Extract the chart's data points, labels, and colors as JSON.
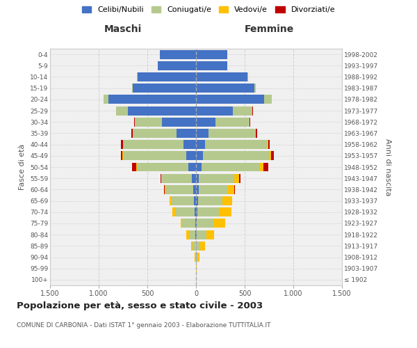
{
  "age_groups": [
    "100+",
    "95-99",
    "90-94",
    "85-89",
    "80-84",
    "75-79",
    "70-74",
    "65-69",
    "60-64",
    "55-59",
    "50-54",
    "45-49",
    "40-44",
    "35-39",
    "30-34",
    "25-29",
    "20-24",
    "15-19",
    "10-14",
    "5-9",
    "0-4"
  ],
  "birth_years": [
    "≤ 1902",
    "1903-1907",
    "1908-1912",
    "1913-1917",
    "1918-1922",
    "1923-1927",
    "1928-1932",
    "1933-1937",
    "1938-1942",
    "1943-1947",
    "1948-1952",
    "1953-1957",
    "1958-1962",
    "1963-1967",
    "1968-1972",
    "1973-1977",
    "1978-1982",
    "1983-1987",
    "1988-1992",
    "1993-1997",
    "1998-2002"
  ],
  "maschi": {
    "celibe": [
      0,
      0,
      0,
      3,
      5,
      10,
      15,
      20,
      30,
      40,
      80,
      100,
      130,
      200,
      350,
      700,
      900,
      650,
      600,
      390,
      370
    ],
    "coniugato": [
      0,
      2,
      10,
      30,
      70,
      130,
      200,
      230,
      280,
      310,
      530,
      650,
      620,
      450,
      280,
      120,
      50,
      10,
      5,
      2,
      1
    ],
    "vedovo": [
      0,
      1,
      5,
      15,
      25,
      20,
      30,
      20,
      15,
      5,
      5,
      5,
      3,
      3,
      2,
      2,
      1,
      0,
      0,
      0,
      0
    ],
    "divorziato": [
      0,
      0,
      0,
      0,
      0,
      0,
      0,
      0,
      5,
      10,
      40,
      20,
      15,
      10,
      5,
      2,
      2,
      0,
      0,
      0,
      0
    ]
  },
  "femmine": {
    "nubile": [
      0,
      0,
      2,
      3,
      5,
      10,
      15,
      20,
      25,
      30,
      60,
      70,
      90,
      130,
      200,
      380,
      700,
      600,
      530,
      320,
      320
    ],
    "coniugata": [
      0,
      2,
      15,
      40,
      100,
      170,
      220,
      250,
      300,
      360,
      600,
      680,
      640,
      480,
      350,
      200,
      80,
      15,
      5,
      2,
      1
    ],
    "vedova": [
      0,
      3,
      20,
      50,
      80,
      120,
      130,
      100,
      70,
      50,
      30,
      20,
      10,
      5,
      3,
      2,
      1,
      0,
      0,
      0,
      0
    ],
    "divorziata": [
      0,
      0,
      0,
      0,
      0,
      0,
      0,
      0,
      5,
      15,
      50,
      30,
      20,
      12,
      5,
      2,
      1,
      0,
      0,
      0,
      0
    ]
  },
  "colors": {
    "celibe": "#4472C4",
    "coniugato": "#b5c98e",
    "vedovo": "#ffc000",
    "divorziato": "#c00000"
  },
  "xlim": 1500,
  "title": "Popolazione per età, sesso e stato civile - 2003",
  "subtitle": "COMUNE DI CARBONIA - Dati ISTAT 1° gennaio 2003 - Elaborazione TUTTITALIA.IT",
  "xlabel_left": "Maschi",
  "xlabel_right": "Femmine",
  "ylabel_left": "Fasce di età",
  "ylabel_right": "Anni di nascita",
  "legend_labels": [
    "Celibi/Nubili",
    "Coniugati/e",
    "Vedovi/e",
    "Divorziati/e"
  ],
  "bg_color": "#f0f0f0",
  "grid_color": "#cccccc"
}
